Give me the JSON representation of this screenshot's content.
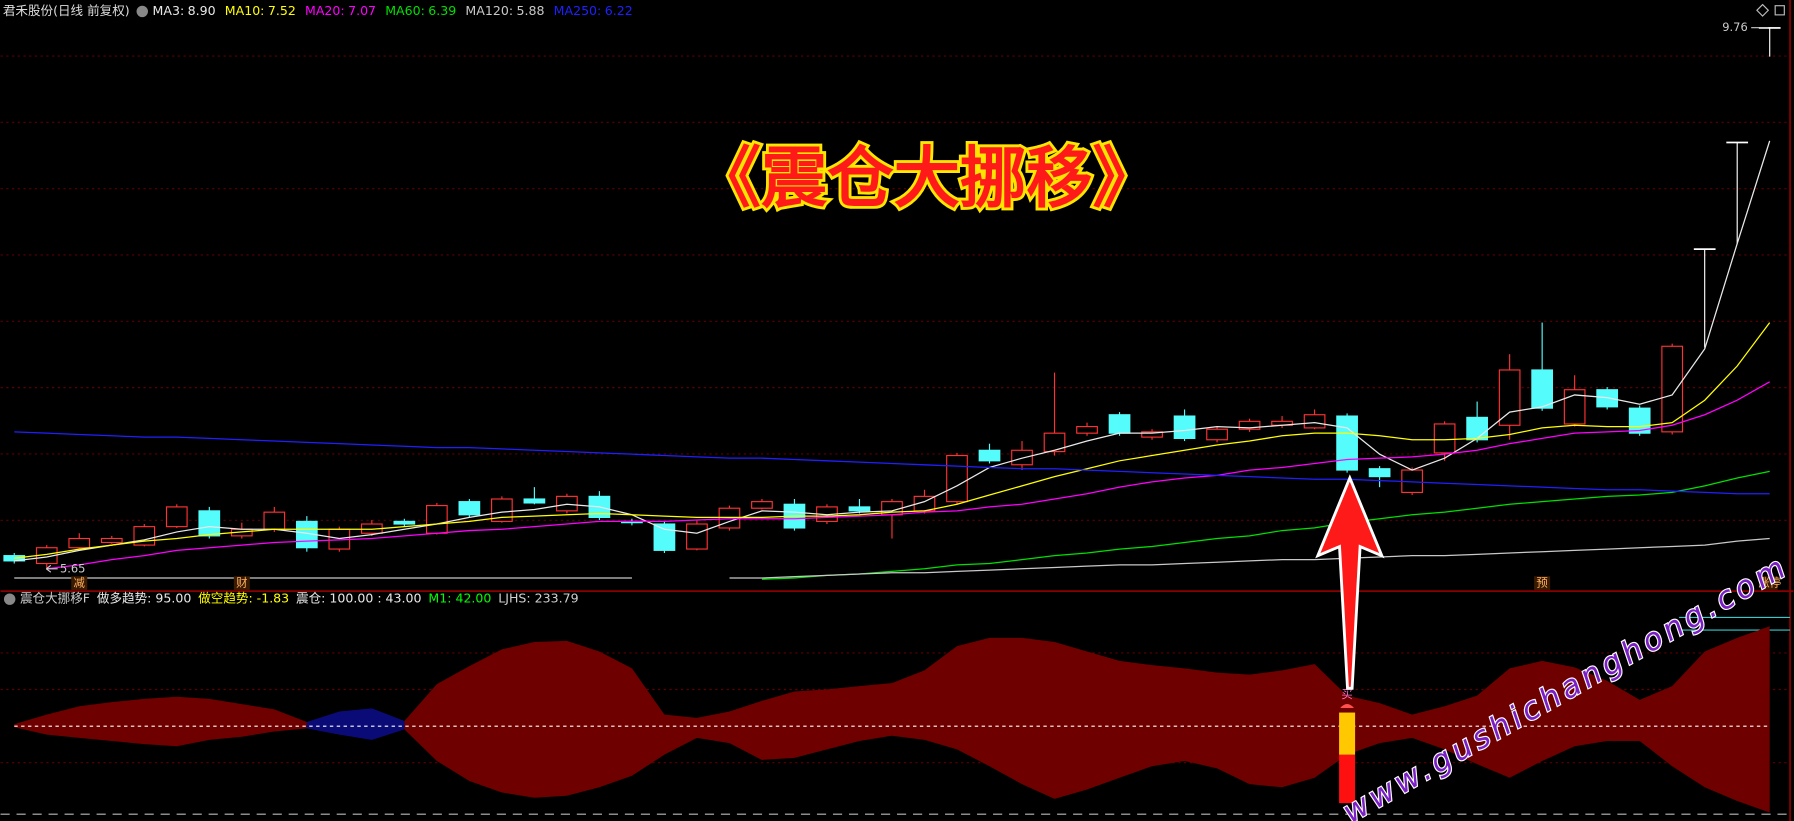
{
  "overlay_title": "《震仓大挪移》",
  "watermark": "www.gushichanghong.com",
  "chart_data": [
    {
      "type": "candlestick",
      "title": "君禾股份(日线 前复权)",
      "open": [
        5.75,
        5.69,
        5.81,
        5.85,
        5.83,
        5.97,
        6.09,
        5.9,
        5.95,
        6.01,
        5.8,
        5.92,
        6.01,
        5.92,
        6.16,
        6.01,
        6.18,
        6.09,
        6.2,
        6.01,
        5.99,
        5.8,
        5.96,
        6.11,
        6.14,
        6.01,
        6.12,
        6.06,
        6.09,
        6.16,
        6.55,
        6.44,
        6.54,
        6.68,
        6.82,
        6.65,
        6.81,
        6.63,
        6.71,
        6.74,
        6.72,
        6.81,
        6.41,
        6.23,
        6.53,
        6.8,
        6.74,
        7.16,
        6.75,
        7.01,
        6.87,
        6.69,
        8.08,
        8.89,
        9.76
      ],
      "high": [
        5.77,
        5.83,
        5.92,
        5.9,
        5.99,
        6.14,
        6.12,
        6.0,
        6.12,
        6.05,
        5.97,
        6.02,
        6.03,
        6.15,
        6.18,
        6.2,
        6.27,
        6.22,
        6.24,
        6.03,
        6.01,
        6.02,
        6.13,
        6.18,
        6.18,
        6.14,
        6.18,
        6.18,
        6.25,
        6.53,
        6.6,
        6.62,
        7.14,
        6.76,
        6.84,
        6.71,
        6.86,
        6.73,
        6.79,
        6.81,
        6.86,
        6.83,
        6.43,
        6.42,
        6.77,
        6.92,
        7.28,
        7.52,
        7.12,
        7.03,
        6.89,
        7.36,
        8.08,
        8.89,
        9.76
      ],
      "low": [
        5.69,
        5.65,
        5.8,
        5.84,
        5.82,
        5.96,
        5.88,
        5.88,
        5.93,
        5.78,
        5.78,
        5.9,
        5.97,
        5.91,
        6.04,
        6.0,
        6.14,
        6.07,
        6.02,
        5.98,
        5.77,
        5.79,
        5.94,
        6.1,
        5.94,
        5.99,
        6.07,
        5.88,
        6.07,
        6.14,
        6.45,
        6.4,
        6.51,
        6.66,
        6.66,
        6.63,
        6.62,
        6.61,
        6.69,
        6.72,
        6.71,
        6.38,
        6.27,
        6.21,
        6.47,
        6.61,
        6.63,
        6.85,
        6.73,
        6.86,
        6.66,
        6.67,
        7.33,
        8.12,
        9.54
      ],
      "close": [
        5.71,
        5.81,
        5.88,
        5.88,
        5.97,
        6.12,
        5.9,
        5.95,
        6.08,
        5.81,
        5.95,
        5.99,
        5.99,
        6.13,
        6.06,
        6.18,
        6.15,
        6.2,
        6.04,
        6.0,
        5.79,
        5.99,
        6.11,
        6.16,
        5.96,
        6.12,
        6.09,
        6.16,
        6.2,
        6.51,
        6.47,
        6.55,
        6.68,
        6.73,
        6.68,
        6.69,
        6.64,
        6.71,
        6.77,
        6.77,
        6.82,
        6.4,
        6.35,
        6.4,
        6.75,
        6.63,
        7.16,
        6.87,
        7.01,
        6.88,
        6.68,
        7.34,
        8.08,
        8.89,
        9.76
      ],
      "up_color": "#ff3232",
      "down_color": "#54fcfc",
      "flat_color": "#ffffff",
      "ylim": [
        5.48,
        9.97
      ],
      "high_mark": 9.76,
      "low_mark": 5.65,
      "events": [
        null,
        null,
        "减",
        null,
        null,
        null,
        null,
        "财",
        null,
        null,
        null,
        null,
        null,
        null,
        null,
        null,
        null,
        null,
        null,
        null,
        null,
        null,
        null,
        null,
        null,
        null,
        null,
        null,
        null,
        null,
        null,
        null,
        null,
        null,
        null,
        null,
        null,
        null,
        null,
        null,
        null,
        null,
        null,
        null,
        null,
        null,
        null,
        "预",
        null,
        null,
        null,
        null,
        null,
        null,
        "涨停"
      ],
      "series": [
        {
          "name": "MA3:",
          "legend_label": "8.90",
          "color": "#e8e8e8",
          "values": [
            5.71,
            5.74,
            5.79,
            5.83,
            5.87,
            5.93,
            5.97,
            5.95,
            5.95,
            5.92,
            5.88,
            5.91,
            5.95,
            5.99,
            6.04,
            6.08,
            6.1,
            6.14,
            6.12,
            6.06,
            5.95,
            5.92,
            6.01,
            6.09,
            6.08,
            6.06,
            6.08,
            6.09,
            6.16,
            6.28,
            6.42,
            6.49,
            6.55,
            6.62,
            6.68,
            6.68,
            6.7,
            6.73,
            6.72,
            6.74,
            6.76,
            6.72,
            6.52,
            6.4,
            6.49,
            6.64,
            6.84,
            6.88,
            6.97,
            6.95,
            6.9,
            6.97,
            7.32,
            8.12,
            8.9
          ]
        },
        {
          "name": "MA10:",
          "legend_label": "7.52",
          "color": "#ffff00",
          "values": [
            5.73,
            5.76,
            5.8,
            5.83,
            5.86,
            5.88,
            5.91,
            5.93,
            5.95,
            5.95,
            5.95,
            5.95,
            5.97,
            5.99,
            6.01,
            6.04,
            6.05,
            6.06,
            6.07,
            6.06,
            6.05,
            6.04,
            6.04,
            6.04,
            6.05,
            6.05,
            6.06,
            6.08,
            6.09,
            6.14,
            6.21,
            6.28,
            6.35,
            6.41,
            6.47,
            6.51,
            6.55,
            6.59,
            6.62,
            6.66,
            6.68,
            6.68,
            6.66,
            6.63,
            6.63,
            6.64,
            6.67,
            6.72,
            6.74,
            6.73,
            6.73,
            6.76,
            6.93,
            7.19,
            7.52
          ]
        },
        {
          "name": "MA20:",
          "legend_label": "7.07",
          "color": "#ff00ff",
          "values": [
            null,
            5.65,
            5.68,
            5.72,
            5.75,
            5.79,
            5.81,
            5.83,
            5.85,
            5.86,
            5.87,
            5.88,
            5.9,
            5.92,
            5.94,
            5.95,
            5.97,
            5.99,
            6.01,
            6.01,
            6.01,
            6.02,
            6.03,
            6.03,
            6.03,
            6.04,
            6.05,
            6.06,
            6.08,
            6.09,
            6.12,
            6.14,
            6.18,
            6.22,
            6.27,
            6.31,
            6.34,
            6.36,
            6.4,
            6.42,
            6.45,
            6.48,
            6.49,
            6.5,
            6.52,
            6.55,
            6.6,
            6.64,
            6.68,
            6.69,
            6.7,
            6.74,
            6.82,
            6.93,
            7.07
          ]
        },
        {
          "name": "MA60:",
          "legend_label": "6.39",
          "color": "#00e000",
          "values": [
            null,
            null,
            null,
            null,
            null,
            null,
            null,
            null,
            null,
            null,
            null,
            null,
            null,
            null,
            null,
            null,
            null,
            null,
            null,
            null,
            null,
            null,
            null,
            5.57,
            5.58,
            5.6,
            5.61,
            5.63,
            5.65,
            5.68,
            5.69,
            5.72,
            5.75,
            5.77,
            5.8,
            5.82,
            5.85,
            5.88,
            5.9,
            5.94,
            5.96,
            6.0,
            6.03,
            6.06,
            6.08,
            6.11,
            6.14,
            6.16,
            6.18,
            6.2,
            6.21,
            6.23,
            6.28,
            6.34,
            6.39
          ]
        },
        {
          "name": "MA120:",
          "legend_label": "5.88",
          "color": "#c8c8c8",
          "values": [
            5.58,
            5.58,
            5.58,
            5.58,
            5.58,
            5.58,
            5.58,
            5.58,
            5.58,
            5.58,
            5.58,
            5.58,
            5.58,
            5.58,
            5.58,
            5.58,
            5.58,
            5.58,
            5.58,
            5.58,
            null,
            null,
            5.58,
            5.58,
            5.59,
            5.6,
            5.61,
            5.62,
            5.62,
            5.63,
            5.64,
            5.65,
            5.66,
            5.67,
            5.68,
            5.68,
            5.69,
            5.7,
            5.71,
            5.72,
            5.72,
            5.73,
            5.74,
            5.75,
            5.75,
            5.76,
            5.77,
            5.78,
            5.79,
            5.8,
            5.81,
            5.82,
            5.83,
            5.86,
            5.88
          ]
        },
        {
          "name": "MA250:",
          "legend_label": "6.22",
          "color": "#2020ff",
          "values": [
            6.69,
            6.68,
            6.67,
            6.66,
            6.65,
            6.65,
            6.64,
            6.63,
            6.62,
            6.61,
            6.6,
            6.59,
            6.58,
            6.57,
            6.57,
            6.56,
            6.55,
            6.54,
            6.53,
            6.52,
            6.51,
            6.5,
            6.49,
            6.49,
            6.48,
            6.47,
            6.46,
            6.45,
            6.44,
            6.43,
            6.42,
            6.41,
            6.41,
            6.4,
            6.39,
            6.38,
            6.37,
            6.36,
            6.35,
            6.34,
            6.33,
            6.33,
            6.32,
            6.31,
            6.3,
            6.29,
            6.28,
            6.27,
            6.26,
            6.25,
            6.25,
            6.24,
            6.23,
            6.22,
            6.22
          ]
        }
      ]
    },
    {
      "type": "area-band",
      "title": "震仓大挪移F",
      "readouts": [
        {
          "text": "做多趋势: 95.00",
          "color": "#e8e8e8"
        },
        {
          "text": "做空趋势: -1.83",
          "color": "#ffff00"
        },
        {
          "text": "震仓: 100.00 : 43.00",
          "color": "#e8e8e8"
        },
        {
          "text": "M1: 42.00",
          "color": "#00ff00"
        },
        {
          "text": "LJHS: 233.79",
          "color": "#d0d0d0"
        }
      ],
      "ylim": [
        -90,
        112
      ],
      "baseline": 0,
      "series": [
        {
          "color": "#6e0000",
          "upper": [
            2,
            11,
            19,
            23,
            26,
            28,
            26,
            21,
            16,
            4,
            null,
            null,
            5,
            40,
            57,
            73,
            80,
            81,
            71,
            55,
            11,
            8,
            14,
            24,
            33,
            35,
            38,
            41,
            53,
            76,
            84,
            84,
            80,
            71,
            62,
            58,
            55,
            51,
            49,
            53,
            59,
            29,
            22,
            11,
            19,
            29,
            55,
            62,
            56,
            43,
            25,
            38,
            71,
            84,
            95
          ],
          "lower": [
            -1,
            -8,
            -11,
            -14,
            -17,
            -19,
            -13,
            -10,
            -5,
            -2,
            null,
            null,
            -3,
            -33,
            -52,
            -63,
            -68,
            -66,
            -58,
            -47,
            -27,
            -11,
            -16,
            -32,
            -30,
            -22,
            -14,
            -9,
            -13,
            -22,
            -38,
            -55,
            -69,
            -60,
            -49,
            -38,
            -33,
            -40,
            -55,
            -58,
            -49,
            -27,
            -16,
            -11,
            -22,
            -36,
            -49,
            -33,
            -19,
            -14,
            -14,
            -38,
            -58,
            -71,
            -82
          ]
        },
        {
          "color": "#0b0b78",
          "upper": [
            null,
            null,
            null,
            null,
            null,
            null,
            null,
            null,
            null,
            4,
            14,
            17,
            5,
            null,
            null,
            null,
            null,
            null,
            null,
            null,
            null,
            null,
            null,
            null,
            null,
            null,
            null,
            null,
            null,
            null,
            null,
            null,
            null,
            null,
            null,
            null,
            null,
            null,
            null,
            null,
            null,
            null,
            null,
            null,
            null,
            null,
            null,
            null,
            null,
            null,
            null,
            null,
            null,
            null,
            null
          ],
          "lower": [
            null,
            null,
            null,
            null,
            null,
            null,
            null,
            null,
            null,
            -2,
            -8,
            -13,
            -3,
            null,
            null,
            null,
            null,
            null,
            null,
            null,
            null,
            null,
            null,
            null,
            null,
            null,
            null,
            null,
            null,
            null,
            null,
            null,
            null,
            null,
            null,
            null,
            null,
            null,
            null,
            null,
            null,
            null,
            null,
            null,
            null,
            null,
            null,
            null,
            null,
            null,
            null,
            null,
            null,
            null,
            null
          ]
        }
      ],
      "signal": {
        "index": 41,
        "base": -73,
        "label": "买",
        "segments": [
          {
            "color": "#ff1010",
            "value": 46
          },
          {
            "color": "#ffc800",
            "value": 40
          }
        ]
      }
    }
  ]
}
